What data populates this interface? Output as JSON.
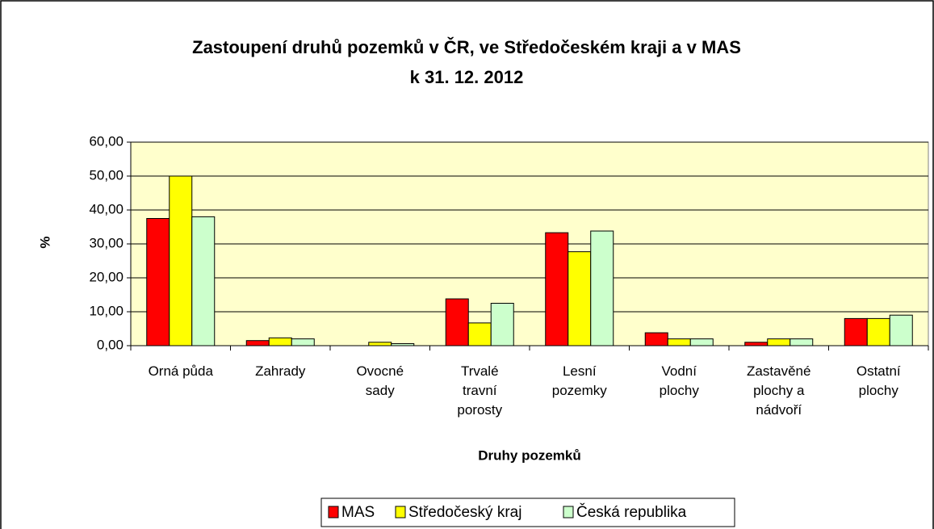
{
  "chart_data": {
    "type": "bar",
    "title": [
      "Zastoupení druhů pozemků v ČR, ve Středočeském kraji a v MAS",
      "k 31. 12. 2012"
    ],
    "x_label": "Druhy pozemků",
    "y_label": "%",
    "categories": [
      "Orná půda",
      "Zahrady",
      "Ovocné sady",
      "Trvalé travní porosty",
      "Lesní pozemky",
      "Vodní plochy",
      "Zastavěné plochy a nádvoří",
      "Ostatní plochy"
    ],
    "series": [
      {
        "name": "MAS",
        "color": "#ff0000",
        "values": [
          37.5,
          1.5,
          0,
          13.8,
          33.3,
          3.8,
          1,
          8
        ]
      },
      {
        "name": "Středočeský kraj",
        "color": "#ffff00",
        "values": [
          50,
          2.3,
          1,
          6.7,
          27.7,
          2,
          2,
          8
        ]
      },
      {
        "name": "Česká republika",
        "color": "#ccffcc",
        "values": [
          38,
          2,
          0.6,
          12.5,
          33.8,
          2,
          2,
          9
        ]
      }
    ],
    "ylim": [
      0,
      60
    ],
    "yticks": [
      {
        "value": 0,
        "label": "0,00"
      },
      {
        "value": 10,
        "label": "10,00"
      },
      {
        "value": 20,
        "label": "20,00"
      },
      {
        "value": 30,
        "label": "30,00"
      },
      {
        "value": 40,
        "label": "40,00"
      },
      {
        "value": 50,
        "label": "50,00"
      },
      {
        "value": 60,
        "label": "60,00"
      }
    ],
    "grid": true,
    "legend": "bottom",
    "plot_background": "#ffffcc"
  }
}
